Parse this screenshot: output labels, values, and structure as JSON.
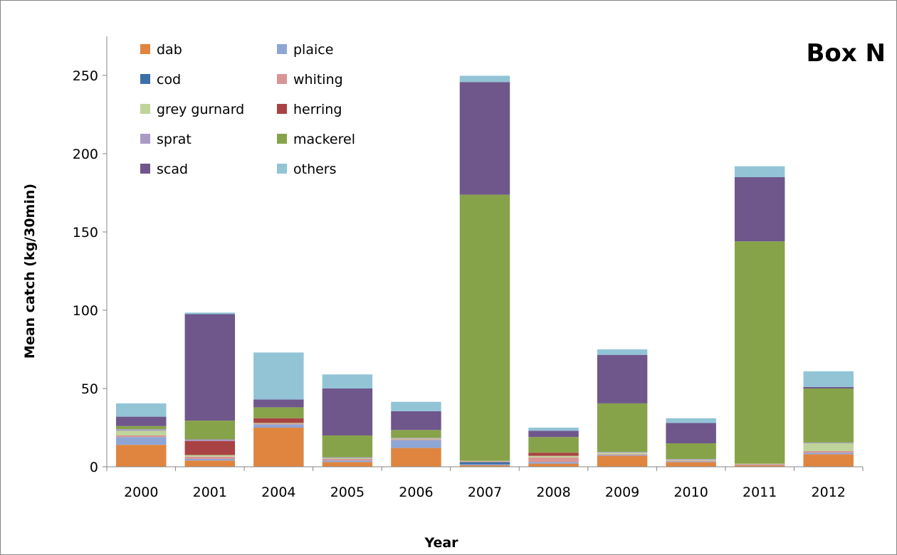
{
  "chart_data": {
    "type": "bar",
    "stacked": true,
    "title": "Box N",
    "xlabel": "Year",
    "ylabel": "Mean catch (kg/30min)",
    "ylim": [
      0,
      275
    ],
    "yticks": [
      0,
      50,
      100,
      150,
      200,
      250
    ],
    "grid": false,
    "legend_position": "top-left",
    "categories": [
      "2000",
      "2001",
      "2004",
      "2005",
      "2006",
      "2007",
      "2008",
      "2009",
      "2010",
      "2011",
      "2012"
    ],
    "series": [
      {
        "name": "dab",
        "color": "#E0853F",
        "values": [
          14,
          4,
          25,
          3,
          12,
          1,
          2,
          7,
          3,
          1,
          8
        ]
      },
      {
        "name": "plaice",
        "color": "#8EA6D6",
        "values": [
          5,
          1,
          2,
          1,
          5,
          0.5,
          1,
          0.5,
          0.5,
          0.3,
          1
        ]
      },
      {
        "name": "cod",
        "color": "#3D6FA7",
        "values": [
          0,
          0,
          0,
          0,
          0,
          1.5,
          0,
          0,
          0,
          0,
          0
        ]
      },
      {
        "name": "whiting",
        "color": "#D99594",
        "values": [
          1,
          1.5,
          0.5,
          1,
          0.5,
          0.5,
          3,
          0.5,
          0.5,
          0.5,
          1
        ]
      },
      {
        "name": "grey gurnard",
        "color": "#BFD49A",
        "values": [
          3,
          1,
          0.5,
          0.5,
          0.5,
          0.3,
          1,
          1,
          0.5,
          0.2,
          5
        ]
      },
      {
        "name": "herring",
        "color": "#A94343",
        "values": [
          0,
          9,
          3,
          0,
          0,
          0,
          2,
          0,
          0,
          0,
          0
        ]
      },
      {
        "name": "sprat",
        "color": "#A99BC6",
        "values": [
          1,
          1,
          0,
          0.5,
          0.5,
          0,
          0,
          0.5,
          0.5,
          0,
          0.5
        ]
      },
      {
        "name": "mackerel",
        "color": "#87A34A",
        "values": [
          2,
          12,
          7,
          14,
          5,
          170,
          10,
          31,
          10,
          142,
          34.5
        ]
      },
      {
        "name": "scad",
        "color": "#6F578C",
        "values": [
          6,
          68,
          5,
          30,
          12,
          72,
          4,
          31,
          13,
          41,
          1
        ]
      },
      {
        "name": "others",
        "color": "#92C4D6",
        "values": [
          8.5,
          1,
          30,
          9,
          6,
          4,
          2,
          3.5,
          3,
          7,
          10
        ]
      }
    ]
  }
}
